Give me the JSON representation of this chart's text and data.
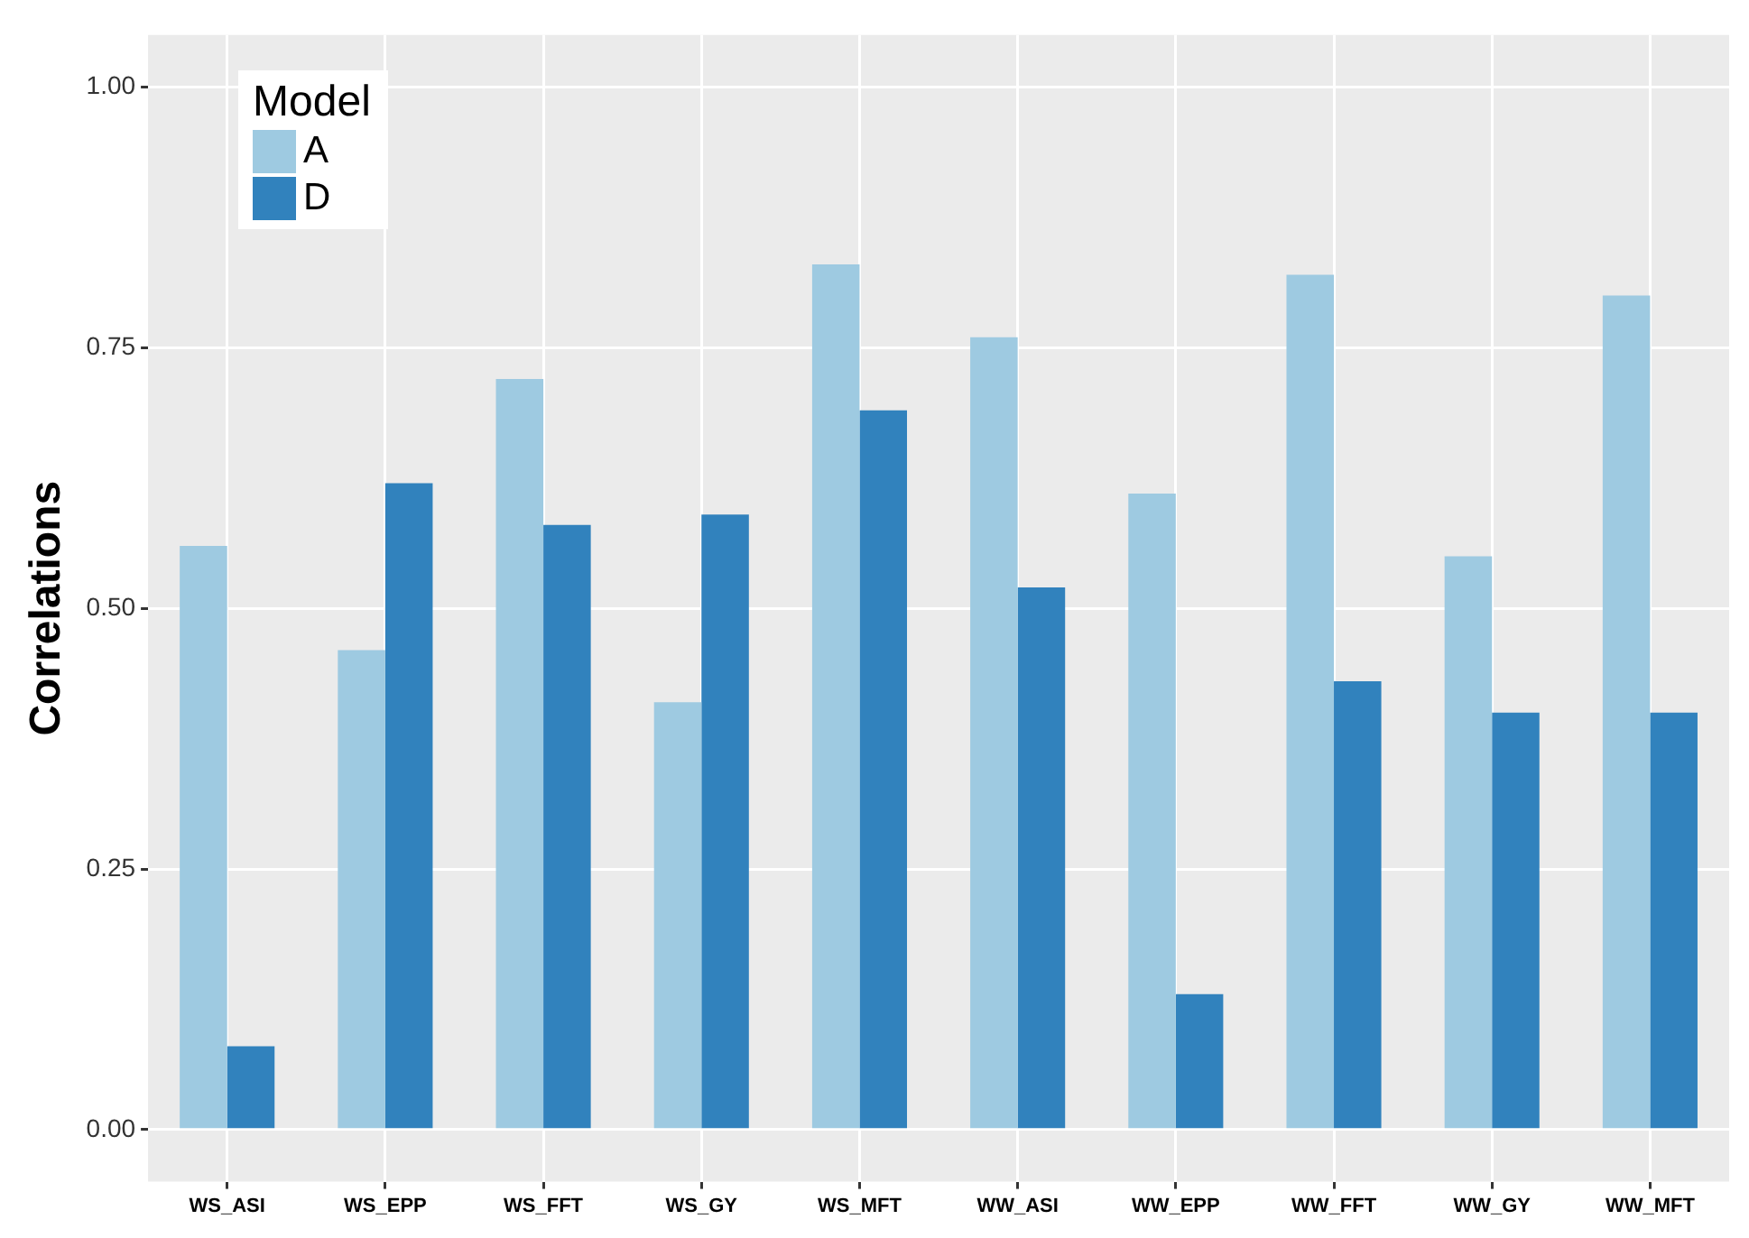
{
  "chart_data": {
    "type": "bar",
    "ylabel": "Correlations",
    "legend_title": "Model",
    "legend": "top left",
    "grid": true,
    "categories": [
      "WS_ASI",
      "WS_EPP",
      "WS_FFT",
      "WS_GY",
      "WS_MFT",
      "WW_ASI",
      "WW_EPP",
      "WW_FFT",
      "WW_GY",
      "WW_MFT"
    ],
    "series": [
      {
        "name": "A",
        "color": "#9ecae1",
        "values": [
          0.56,
          0.46,
          0.72,
          0.41,
          0.83,
          0.76,
          0.61,
          0.82,
          0.55,
          0.8
        ]
      },
      {
        "name": "D",
        "color": "#3182bd",
        "values": [
          0.08,
          0.62,
          0.58,
          0.59,
          0.69,
          0.52,
          0.13,
          0.43,
          0.4,
          0.4
        ]
      }
    ],
    "ylim": [
      -0.05,
      1.05
    ],
    "yticks": [
      {
        "value": 0,
        "label": "0.00"
      },
      {
        "value": 0.25,
        "label": "0.25"
      },
      {
        "value": 0.5,
        "label": "0.50"
      },
      {
        "value": 0.75,
        "label": "0.75"
      },
      {
        "value": 1,
        "label": "1.00"
      }
    ]
  }
}
